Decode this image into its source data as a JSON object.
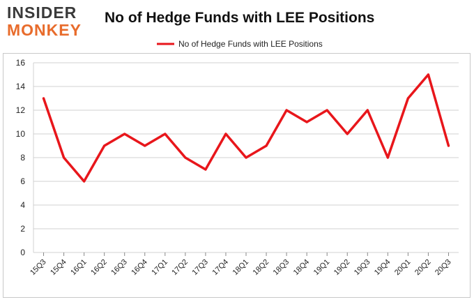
{
  "brand": {
    "line1": "INSIDER",
    "line2": "MONKEY"
  },
  "colors": {
    "series": "#e8161b",
    "grid": "#d0d0d0",
    "logo_dark": "#3a3a3a",
    "logo_accent": "#e86c2c"
  },
  "chart_data": {
    "type": "line",
    "title": "No of Hedge Funds with LEE Positions",
    "xlabel": "",
    "ylabel": "",
    "ylim": [
      0,
      16
    ],
    "yticks": [
      0,
      2,
      4,
      6,
      8,
      10,
      12,
      14,
      16
    ],
    "legend": "top-center",
    "grid": true,
    "categories": [
      "15Q3",
      "15Q4",
      "16Q1",
      "16Q2",
      "16Q3",
      "16Q4",
      "17Q1",
      "17Q2",
      "17Q3",
      "17Q4",
      "18Q1",
      "18Q2",
      "18Q3",
      "18Q4",
      "19Q1",
      "19Q2",
      "19Q3",
      "19Q4",
      "20Q1",
      "20Q2",
      "20Q3"
    ],
    "series": [
      {
        "name": "No of Hedge Funds with LEE Positions",
        "values": [
          13,
          8,
          6,
          9,
          10,
          9,
          10,
          8,
          7,
          10,
          8,
          9,
          12,
          11,
          12,
          10,
          12,
          8,
          13,
          15,
          9
        ]
      }
    ]
  }
}
